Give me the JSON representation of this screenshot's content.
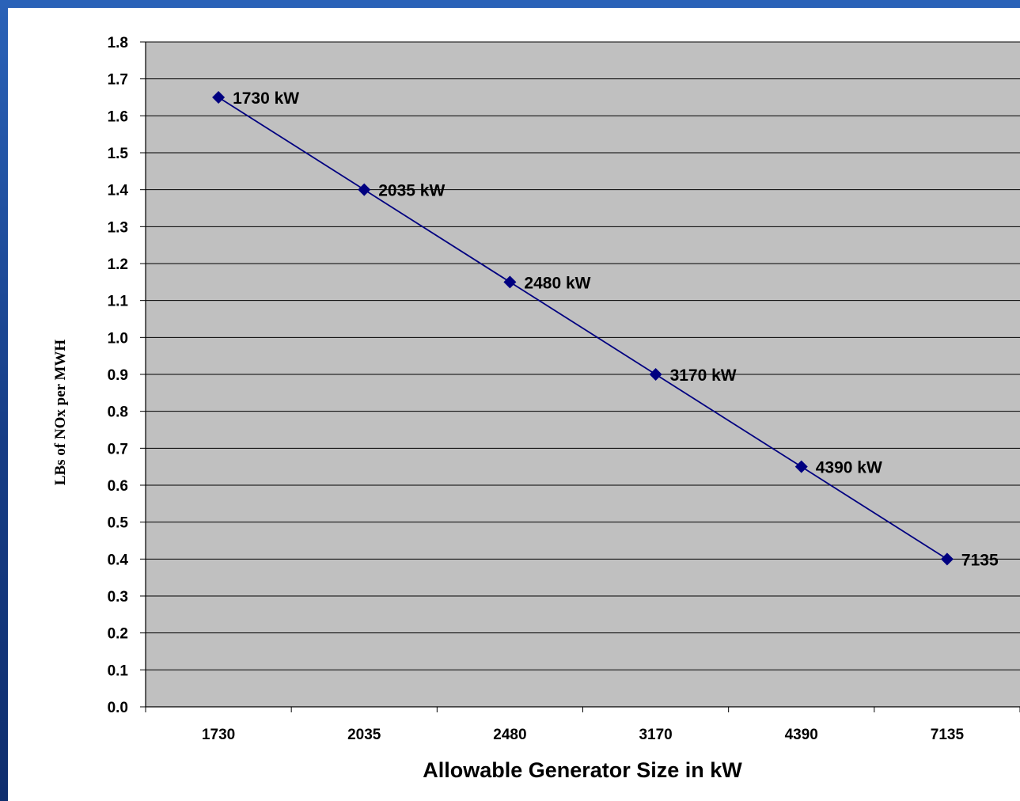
{
  "chart_data": {
    "type": "line",
    "categories": [
      "1730",
      "2035",
      "2480",
      "3170",
      "4390",
      "7135"
    ],
    "series": [
      {
        "values": [
          1.65,
          1.4,
          1.15,
          0.9,
          0.65,
          0.4
        ],
        "labels": [
          "1730 kW",
          "2035 kW",
          "2480 kW",
          "3170 kW",
          "4390 kW",
          "7135"
        ],
        "color": "#000080"
      }
    ],
    "xlabel": "Allowable Generator Size in kW",
    "ylabel": "LBs of NOx per MWH",
    "ylim": [
      0,
      1.8
    ],
    "ytick_step": 0.1,
    "grid": true,
    "plot_background": "#c0c0c0"
  }
}
